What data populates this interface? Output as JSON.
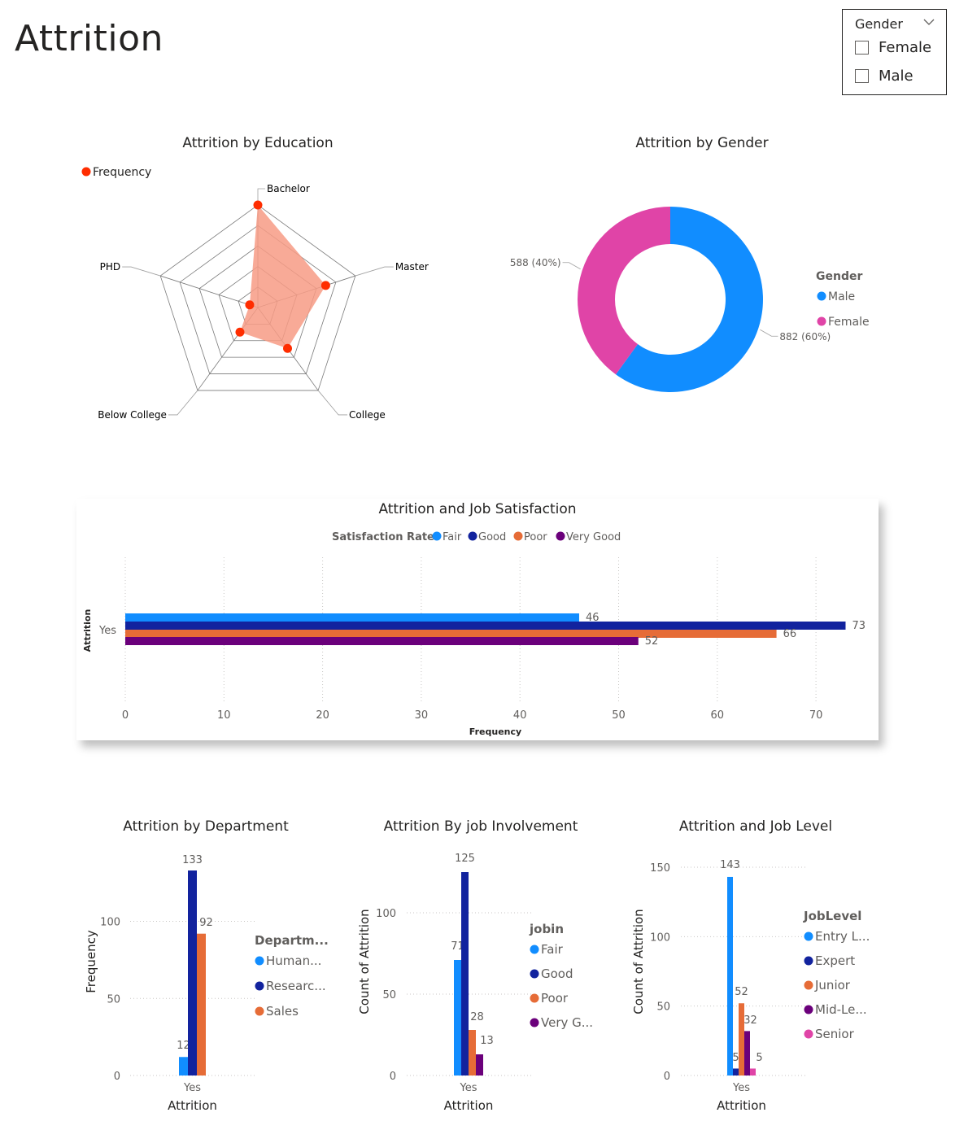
{
  "page": {
    "title": "Attrition"
  },
  "slicer": {
    "title": "Gender",
    "options": [
      "Female",
      "Male"
    ]
  },
  "chart_data": [
    {
      "id": "education",
      "type": "radar",
      "title": "Attrition by Education",
      "legend": [
        "Frequency"
      ],
      "categories": [
        "Bachelor",
        "Master",
        "College",
        "Below College",
        "PHD"
      ],
      "values": [
        572,
        398,
        282,
        170,
        48
      ],
      "rmax": 572,
      "colors": {
        "point": "#ff2d00",
        "fill": "#f79b85"
      }
    },
    {
      "id": "gender",
      "type": "pie",
      "title": "Attrition by Gender",
      "legend_title": "Gender",
      "slices": [
        {
          "label": "Male",
          "value": 882,
          "data_label": "882 (60%)",
          "color": "#118dff"
        },
        {
          "label": "Female",
          "value": 588,
          "data_label": "588 (40%)",
          "color": "#e044a7"
        }
      ]
    },
    {
      "id": "job_satisfaction",
      "type": "bar",
      "orientation": "horizontal",
      "title": "Attrition and Job Satisfaction",
      "legend_title": "Satisfaction Rate",
      "categories": [
        "Yes"
      ],
      "xlabel": "Frequency",
      "ylabel": "Attrition",
      "xticks": [
        0,
        10,
        20,
        30,
        40,
        50,
        60,
        70
      ],
      "xlim": [
        0,
        73
      ],
      "series": [
        {
          "name": "Fair",
          "values": [
            46
          ],
          "color": "#118dff"
        },
        {
          "name": "Good",
          "values": [
            73
          ],
          "color": "#12239e"
        },
        {
          "name": "Poor",
          "values": [
            66
          ],
          "color": "#e66c37"
        },
        {
          "name": "Very Good",
          "values": [
            52
          ],
          "color": "#6b007b"
        }
      ]
    },
    {
      "id": "department",
      "type": "bar",
      "title": "Attrition by Department",
      "legend_title": "Departm...",
      "categories": [
        "Yes"
      ],
      "xlabel": "Attrition",
      "ylabel": "Frequency",
      "yticks": [
        0,
        50,
        100
      ],
      "ylim": [
        0,
        133
      ],
      "series": [
        {
          "name": "Human...",
          "values": [
            12
          ],
          "color": "#118dff"
        },
        {
          "name": "Researc...",
          "values": [
            133
          ],
          "color": "#12239e"
        },
        {
          "name": "Sales",
          "values": [
            92
          ],
          "color": "#e66c37"
        }
      ]
    },
    {
      "id": "job_involvement",
      "type": "bar",
      "title": "Attrition By job Involvement",
      "legend_title": "jobin",
      "categories": [
        "Yes"
      ],
      "xlabel": "Attrition",
      "ylabel": "Count of Attrition",
      "yticks": [
        0,
        50,
        100
      ],
      "ylim": [
        0,
        125
      ],
      "series": [
        {
          "name": "Fair",
          "values": [
            71
          ],
          "color": "#118dff"
        },
        {
          "name": "Good",
          "values": [
            125
          ],
          "color": "#12239e"
        },
        {
          "name": "Poor",
          "values": [
            28
          ],
          "color": "#e66c37"
        },
        {
          "name": "Very G...",
          "values": [
            13
          ],
          "color": "#6b007b"
        }
      ]
    },
    {
      "id": "job_level",
      "type": "bar",
      "title": "Attrition and Job Level",
      "legend_title": "JobLevel",
      "categories": [
        "Yes"
      ],
      "xlabel": "Attrition",
      "ylabel": "Count of Attrition",
      "yticks": [
        0,
        50,
        100,
        150
      ],
      "ylim": [
        0,
        150
      ],
      "series": [
        {
          "name": "Entry L...",
          "values": [
            143
          ],
          "color": "#118dff"
        },
        {
          "name": "Expert",
          "values": [
            5
          ],
          "color": "#12239e"
        },
        {
          "name": "Junior",
          "values": [
            52
          ],
          "color": "#e66c37"
        },
        {
          "name": "Mid-Le...",
          "values": [
            32
          ],
          "color": "#6b007b"
        },
        {
          "name": "Senior",
          "values": [
            5
          ],
          "color": "#e044a7"
        }
      ]
    }
  ]
}
